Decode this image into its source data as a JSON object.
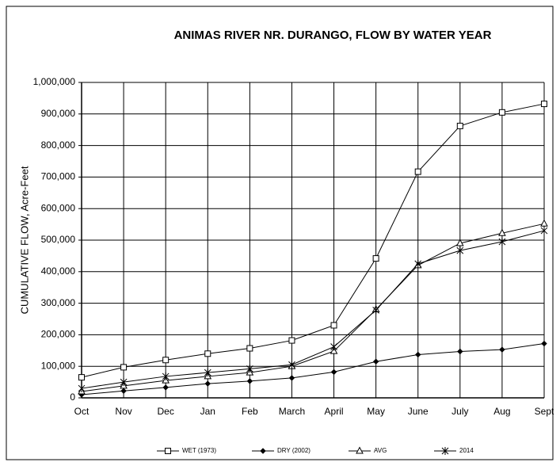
{
  "chart_data": {
    "type": "line",
    "title": "ANIMAS RIVER NR. DURANGO, FLOW BY WATER YEAR",
    "y_label": "CUMULATIVE FLOW, Acre-Feet",
    "categories": [
      "Oct",
      "Nov",
      "Dec",
      "Jan",
      "Feb",
      "March",
      "April",
      "May",
      "June",
      "July",
      "Aug",
      "Sept"
    ],
    "series": [
      {
        "name": "WET (1973)",
        "color": "#000000",
        "marker": "square",
        "values": [
          65000,
          97000,
          120000,
          140000,
          157000,
          182000,
          230000,
          442000,
          717000,
          862000,
          905000,
          932000
        ]
      },
      {
        "name": "DRY (2002)",
        "color": "#000000",
        "marker": "diamond",
        "values": [
          10000,
          22000,
          33000,
          45000,
          53000,
          63000,
          82000,
          115000,
          137000,
          147000,
          153000,
          172000
        ]
      },
      {
        "name": "AVG",
        "color": "#000000",
        "marker": "triangle",
        "values": [
          20000,
          38000,
          55000,
          68000,
          80000,
          100000,
          148000,
          280000,
          420000,
          490000,
          522000,
          552000
        ]
      },
      {
        "name": "2014",
        "color": "#000000",
        "marker": "star",
        "values": [
          30000,
          50000,
          68000,
          80000,
          92000,
          105000,
          162000,
          278000,
          425000,
          467000,
          495000,
          530000
        ]
      }
    ],
    "ylim": [
      0,
      1000000
    ],
    "yticks": [
      0,
      {
        "value": 100000,
        "label": "100,000"
      },
      {
        "value": 200000,
        "label": "200,000"
      },
      {
        "value": 300000,
        "label": "300,000"
      },
      {
        "value": 400000,
        "label": "400,000"
      },
      {
        "value": 500000,
        "label": "500,000"
      },
      {
        "value": 600000,
        "label": "600,000"
      },
      {
        "value": 700000,
        "label": "700,000"
      },
      {
        "value": 800000,
        "label": "800,000"
      },
      {
        "value": 900000,
        "label": "900,000"
      },
      {
        "value": 1000000,
        "label": "1,000,000"
      }
    ],
    "grid": true,
    "legend": "bottom"
  }
}
